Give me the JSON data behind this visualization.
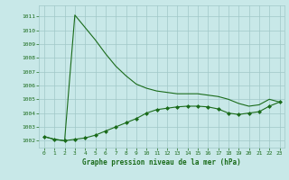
{
  "title": "Graphe pression niveau de la mer (hPa)",
  "bg_color": "#c8e8e8",
  "grid_color": "#a0c8c8",
  "line_color": "#1a6b1a",
  "marker_color": "#1a6b1a",
  "xlim": [
    -0.5,
    23.5
  ],
  "ylim": [
    1001.5,
    1011.8
  ],
  "yticks": [
    1002,
    1003,
    1004,
    1005,
    1006,
    1007,
    1008,
    1009,
    1010,
    1011
  ],
  "xticks": [
    0,
    1,
    2,
    3,
    4,
    5,
    6,
    7,
    8,
    9,
    10,
    11,
    12,
    13,
    14,
    15,
    16,
    17,
    18,
    19,
    20,
    21,
    22,
    23
  ],
  "upper_x": [
    0,
    1,
    2,
    3,
    4,
    5,
    6,
    7,
    8,
    9,
    10,
    11,
    12,
    13,
    14,
    15,
    16,
    17,
    18,
    19,
    20,
    21,
    22,
    23
  ],
  "upper_y": [
    1002.3,
    1002.1,
    1002.0,
    1011.1,
    1010.2,
    1009.3,
    1008.3,
    1007.4,
    1006.7,
    1006.1,
    1005.8,
    1005.6,
    1005.5,
    1005.4,
    1005.4,
    1005.4,
    1005.3,
    1005.2,
    1005.0,
    1004.7,
    1004.5,
    1004.6,
    1005.0,
    1004.8
  ],
  "lower_x": [
    0,
    1,
    2,
    3,
    4,
    5,
    6,
    7,
    8,
    9,
    10,
    11,
    12,
    13,
    14,
    15,
    16,
    17,
    18,
    19,
    20,
    21,
    22,
    23
  ],
  "lower_y": [
    1002.3,
    1002.1,
    1002.0,
    1002.1,
    1002.2,
    1002.4,
    1002.7,
    1003.0,
    1003.3,
    1003.6,
    1004.0,
    1004.25,
    1004.35,
    1004.45,
    1004.5,
    1004.5,
    1004.45,
    1004.3,
    1004.0,
    1003.9,
    1004.0,
    1004.1,
    1004.5,
    1004.8
  ],
  "title_fontsize": 5.5,
  "tick_fontsize": 4.5
}
